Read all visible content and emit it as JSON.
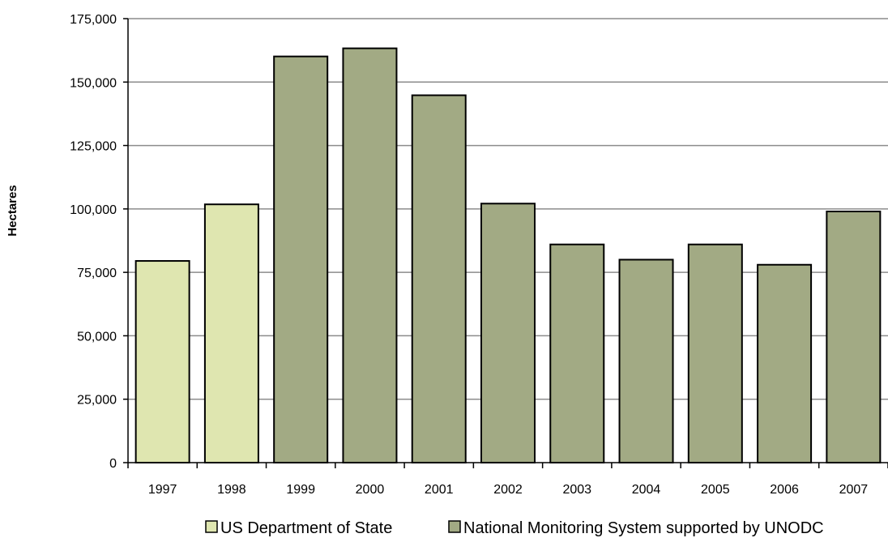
{
  "chart_data": {
    "type": "bar",
    "title": "",
    "xlabel": "",
    "ylabel": "Hectares",
    "ylim": [
      0,
      175000
    ],
    "yticks": [
      0,
      25000,
      50000,
      75000,
      100000,
      125000,
      150000,
      175000
    ],
    "ytick_labels": [
      "0",
      "25,000",
      "50,000",
      "75,000",
      "100,000",
      "125,000",
      "150,000",
      "175,000"
    ],
    "grid": true,
    "legend_position": "bottom",
    "categories": [
      "1997",
      "1998",
      "1999",
      "2000",
      "2001",
      "2002",
      "2003",
      "2004",
      "2005",
      "2006",
      "2007"
    ],
    "values": [
      79500,
      101800,
      160100,
      163300,
      144800,
      102100,
      86000,
      80000,
      86000,
      78000,
      99000
    ],
    "series": [
      {
        "name": "US Department of State",
        "color": "#dfe6b0",
        "categories": [
          "1997",
          "1998"
        ]
      },
      {
        "name": "National Monitoring System supported by UNODC",
        "color": "#a2aa84",
        "categories": [
          "1999",
          "2000",
          "2001",
          "2002",
          "2003",
          "2004",
          "2005",
          "2006",
          "2007"
        ]
      }
    ]
  }
}
